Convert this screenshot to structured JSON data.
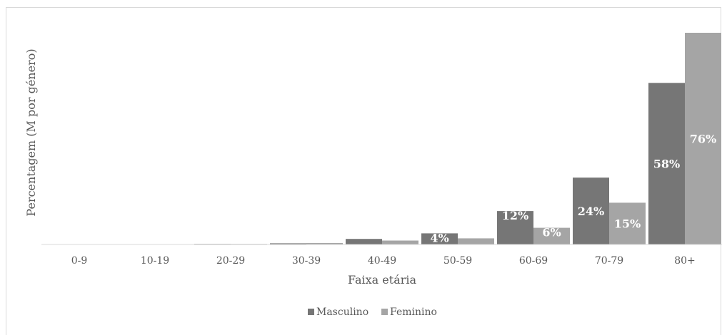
{
  "chart_data": {
    "type": "bar",
    "title": "",
    "xlabel": "Faixa etária",
    "ylabel": "Percentagem (M por género)",
    "categories": [
      "0-9",
      "10-19",
      "20-29",
      "30-39",
      "40-49",
      "50-59",
      "60-69",
      "70-79",
      "80+"
    ],
    "series": [
      {
        "name": "Masculino",
        "color": "#767676",
        "values": [
          0.05,
          0.1,
          0.2,
          0.4,
          2,
          4,
          12,
          24,
          58
        ],
        "labels": [
          "",
          "",
          "",
          "",
          "",
          "4%",
          "12%",
          "24%",
          "58%"
        ]
      },
      {
        "name": "Feminino",
        "color": "#a5a5a5",
        "values": [
          0.05,
          0.1,
          0.2,
          0.5,
          1.4,
          2.2,
          6,
          15,
          76
        ],
        "labels": [
          "",
          "",
          "",
          "",
          "",
          "",
          "6%",
          "15%",
          "76%"
        ]
      }
    ],
    "ylim": [
      0,
      76
    ],
    "grid": false,
    "legend_position": "bottom"
  }
}
